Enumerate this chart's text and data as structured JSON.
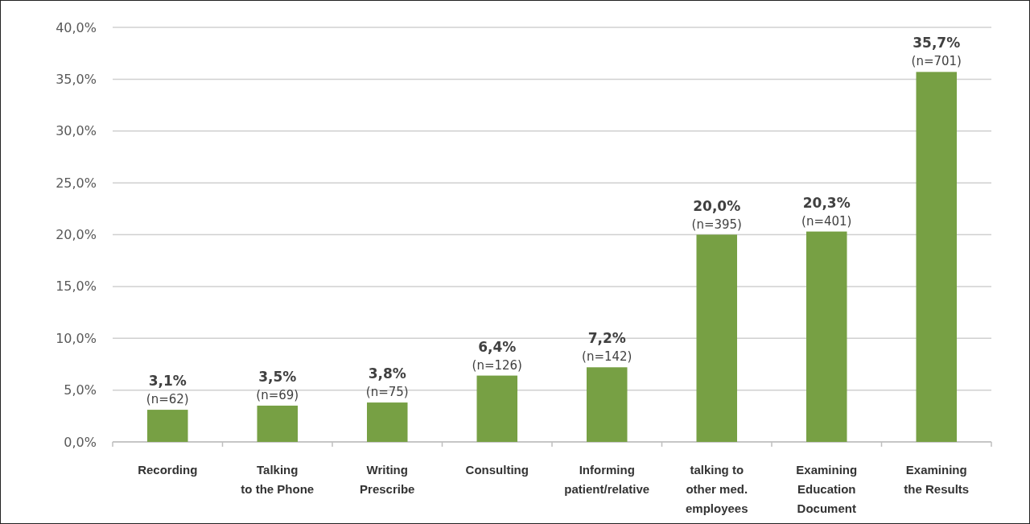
{
  "chart_data": {
    "type": "bar",
    "categories": [
      "Recording",
      "Talking\nto the Phone",
      "Writing\nPrescribe",
      "Consulting",
      "Informing\npatient/relative",
      "talking to\nother med.\nemployees",
      "Examining\nEducation\nDocument",
      "Examining\nthe Results"
    ],
    "values": [
      3.1,
      3.5,
      3.8,
      6.4,
      7.2,
      20.0,
      20.3,
      35.7
    ],
    "value_labels": [
      "3,1%\n(n=62)",
      "3,5%\n(n=69)",
      "3,8%\n(n=75)",
      "6,4%\n(n=126)",
      "7,2%\n(n=142)",
      "20,0%\n(n=395)",
      "20,3%\n(n=401)",
      "35,7%\n(n=701)"
    ],
    "color": "#77a044",
    "ylim": [
      0,
      40
    ],
    "yticks": [
      {
        "value": 0,
        "label": "0,0%"
      },
      {
        "value": 5,
        "label": "5,0%"
      },
      {
        "value": 10,
        "label": "10,0%"
      },
      {
        "value": 15,
        "label": "15,0%"
      },
      {
        "value": 20,
        "label": "20,0%"
      },
      {
        "value": 25,
        "label": "25,0%"
      },
      {
        "value": 30,
        "label": "30,0%"
      },
      {
        "value": 35,
        "label": "35,0%"
      },
      {
        "value": 40,
        "label": "40,0%"
      }
    ],
    "grid": "y"
  }
}
